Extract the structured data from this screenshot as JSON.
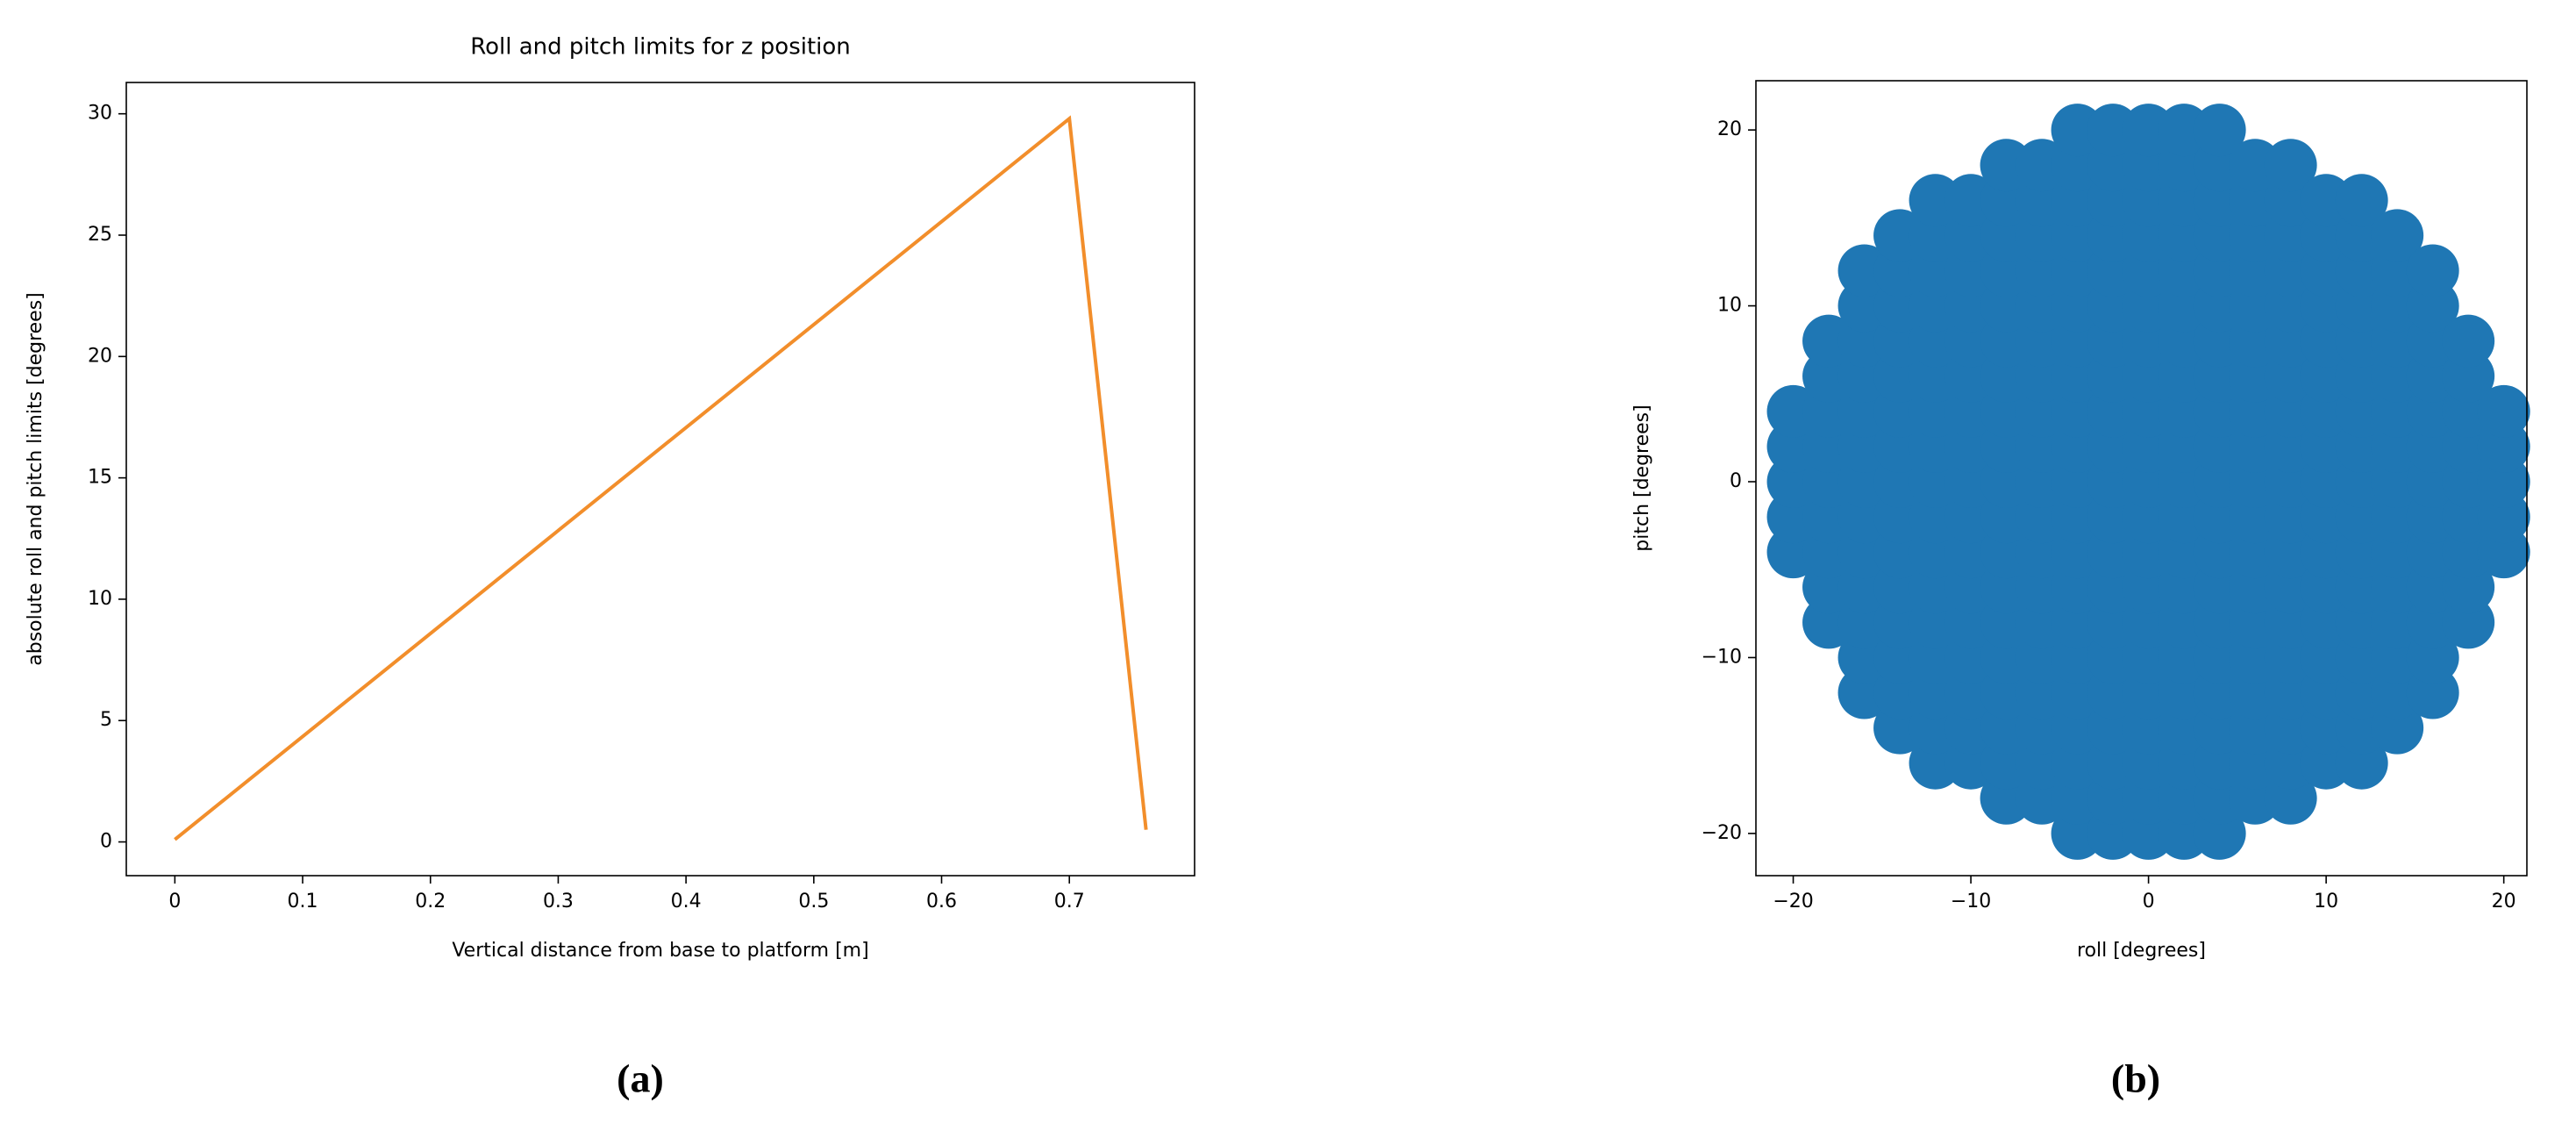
{
  "chart_data": [
    {
      "type": "line",
      "title": "Roll and pitch limits for z position",
      "x_label": "Vertical distance from base to platform [m]",
      "y_label": "absolute roll and pitch limits [degrees]",
      "caption": "(a)",
      "x": [
        0,
        0.7,
        0.76
      ],
      "values": [
        0.1,
        29.8,
        0.5
      ],
      "color": "#f28e2b",
      "xlim": [
        -0.038,
        0.798
      ],
      "ylim": [
        -1.39,
        31.29
      ],
      "xticks": [
        0,
        0.1,
        0.2,
        0.3,
        0.4,
        0.5,
        0.6,
        0.7
      ],
      "yticks": [
        0,
        5,
        10,
        15,
        20,
        25,
        30
      ],
      "grid": false
    },
    {
      "type": "scatter",
      "x_label": "roll [degrees]",
      "y_label": "pitch [degrees]",
      "caption": "(b)",
      "color": "#1f77b4",
      "x": [
        -20,
        -20,
        -20,
        -20,
        -20,
        -18,
        -18,
        -18,
        -18,
        -18,
        -18,
        -18,
        -18,
        -18,
        -16,
        -16,
        -16,
        -16,
        -16,
        -16,
        -16,
        -16,
        -16,
        -16,
        -16,
        -16,
        -16,
        -14,
        -14,
        -14,
        -14,
        -14,
        -14,
        -14,
        -14,
        -14,
        -14,
        -14,
        -14,
        -14,
        -14,
        -14,
        -12,
        -12,
        -12,
        -12,
        -12,
        -12,
        -12,
        -12,
        -12,
        -12,
        -12,
        -12,
        -12,
        -12,
        -12,
        -12,
        -12,
        -10,
        -10,
        -10,
        -10,
        -10,
        -10,
        -10,
        -10,
        -10,
        -10,
        -10,
        -10,
        -10,
        -10,
        -10,
        -10,
        -10,
        -8,
        -8,
        -8,
        -8,
        -8,
        -8,
        -8,
        -8,
        -8,
        -8,
        -8,
        -8,
        -8,
        -8,
        -8,
        -8,
        -8,
        -8,
        -8,
        -6,
        -6,
        -6,
        -6,
        -6,
        -6,
        -6,
        -6,
        -6,
        -6,
        -6,
        -6,
        -6,
        -6,
        -6,
        -6,
        -6,
        -6,
        -6,
        -4,
        -4,
        -4,
        -4,
        -4,
        -4,
        -4,
        -4,
        -4,
        -4,
        -4,
        -4,
        -4,
        -4,
        -4,
        -4,
        -4,
        -4,
        -4,
        -4,
        -4,
        -2,
        -2,
        -2,
        -2,
        -2,
        -2,
        -2,
        -2,
        -2,
        -2,
        -2,
        -2,
        -2,
        -2,
        -2,
        -2,
        -2,
        -2,
        -2,
        -2,
        -2,
        0,
        0,
        0,
        0,
        0,
        0,
        0,
        0,
        0,
        0,
        0,
        0,
        0,
        0,
        0,
        0,
        0,
        0,
        0,
        0,
        0,
        2,
        2,
        2,
        2,
        2,
        2,
        2,
        2,
        2,
        2,
        2,
        2,
        2,
        2,
        2,
        2,
        2,
        2,
        2,
        2,
        2,
        4,
        4,
        4,
        4,
        4,
        4,
        4,
        4,
        4,
        4,
        4,
        4,
        4,
        4,
        4,
        4,
        4,
        4,
        4,
        4,
        4,
        6,
        6,
        6,
        6,
        6,
        6,
        6,
        6,
        6,
        6,
        6,
        6,
        6,
        6,
        6,
        6,
        6,
        6,
        6,
        8,
        8,
        8,
        8,
        8,
        8,
        8,
        8,
        8,
        8,
        8,
        8,
        8,
        8,
        8,
        8,
        8,
        8,
        8,
        10,
        10,
        10,
        10,
        10,
        10,
        10,
        10,
        10,
        10,
        10,
        10,
        10,
        10,
        10,
        10,
        10,
        12,
        12,
        12,
        12,
        12,
        12,
        12,
        12,
        12,
        12,
        12,
        12,
        12,
        12,
        12,
        12,
        12,
        14,
        14,
        14,
        14,
        14,
        14,
        14,
        14,
        14,
        14,
        14,
        14,
        14,
        14,
        14,
        16,
        16,
        16,
        16,
        16,
        16,
        16,
        16,
        16,
        16,
        16,
        16,
        16,
        18,
        18,
        18,
        18,
        18,
        18,
        18,
        18,
        18,
        20,
        20,
        20,
        20,
        20
      ],
      "values": [
        -4,
        -2,
        0,
        2,
        4,
        -8,
        -6,
        -4,
        -2,
        0,
        2,
        4,
        6,
        8,
        -12,
        -10,
        -8,
        -6,
        -4,
        -2,
        0,
        2,
        4,
        6,
        8,
        10,
        12,
        -14,
        -12,
        -10,
        -8,
        -6,
        -4,
        -2,
        0,
        2,
        4,
        6,
        8,
        10,
        12,
        14,
        -16,
        -14,
        -12,
        -10,
        -8,
        -6,
        -4,
        -2,
        0,
        2,
        4,
        6,
        8,
        10,
        12,
        14,
        16,
        -16,
        -14,
        -12,
        -10,
        -8,
        -6,
        -4,
        -2,
        0,
        2,
        4,
        6,
        8,
        10,
        12,
        14,
        16,
        -18,
        -16,
        -14,
        -12,
        -10,
        -8,
        -6,
        -4,
        -2,
        0,
        2,
        4,
        6,
        8,
        10,
        12,
        14,
        16,
        18,
        -18,
        -16,
        -14,
        -12,
        -10,
        -8,
        -6,
        -4,
        -2,
        0,
        2,
        4,
        6,
        8,
        10,
        12,
        14,
        16,
        18,
        -20,
        -18,
        -16,
        -14,
        -12,
        -10,
        -8,
        -6,
        -4,
        -2,
        0,
        2,
        4,
        6,
        8,
        10,
        12,
        14,
        16,
        18,
        20,
        -20,
        -18,
        -16,
        -14,
        -12,
        -10,
        -8,
        -6,
        -4,
        -2,
        0,
        2,
        4,
        6,
        8,
        10,
        12,
        14,
        16,
        18,
        20,
        -20,
        -18,
        -16,
        -14,
        -12,
        -10,
        -8,
        -6,
        -4,
        -2,
        0,
        2,
        4,
        6,
        8,
        10,
        12,
        14,
        16,
        18,
        20,
        -20,
        -18,
        -16,
        -14,
        -12,
        -10,
        -8,
        -6,
        -4,
        -2,
        0,
        2,
        4,
        6,
        8,
        10,
        12,
        14,
        16,
        18,
        20,
        -20,
        -18,
        -16,
        -14,
        -12,
        -10,
        -8,
        -6,
        -4,
        -2,
        0,
        2,
        4,
        6,
        8,
        10,
        12,
        14,
        16,
        18,
        20,
        -18,
        -16,
        -14,
        -12,
        -10,
        -8,
        -6,
        -4,
        -2,
        0,
        2,
        4,
        6,
        8,
        10,
        12,
        14,
        16,
        18,
        -18,
        -16,
        -14,
        -12,
        -10,
        -8,
        -6,
        -4,
        -2,
        0,
        2,
        4,
        6,
        8,
        10,
        12,
        14,
        16,
        18,
        -16,
        -14,
        -12,
        -10,
        -8,
        -6,
        -4,
        -2,
        0,
        2,
        4,
        6,
        8,
        10,
        12,
        14,
        16,
        -16,
        -14,
        -12,
        -10,
        -8,
        -6,
        -4,
        -2,
        0,
        2,
        4,
        6,
        8,
        10,
        12,
        14,
        16,
        -14,
        -12,
        -10,
        -8,
        -6,
        -4,
        -2,
        0,
        2,
        4,
        6,
        8,
        10,
        12,
        14,
        -12,
        -10,
        -8,
        -6,
        -4,
        -2,
        0,
        2,
        4,
        6,
        8,
        10,
        12,
        -8,
        -6,
        -4,
        -2,
        0,
        2,
        4,
        6,
        8,
        -4,
        -2,
        0,
        2,
        4
      ],
      "xlim": [
        -22.1,
        21.3
      ],
      "ylim": [
        -22.4,
        22.8
      ],
      "xticks": [
        {
          "value": -20,
          "label": "−20"
        },
        {
          "value": -10,
          "label": "−10"
        },
        0,
        10,
        20
      ],
      "yticks": [
        {
          "value": -20,
          "label": "−20"
        },
        {
          "value": -10,
          "label": "−10"
        },
        0,
        10,
        20
      ],
      "grid": false
    }
  ]
}
